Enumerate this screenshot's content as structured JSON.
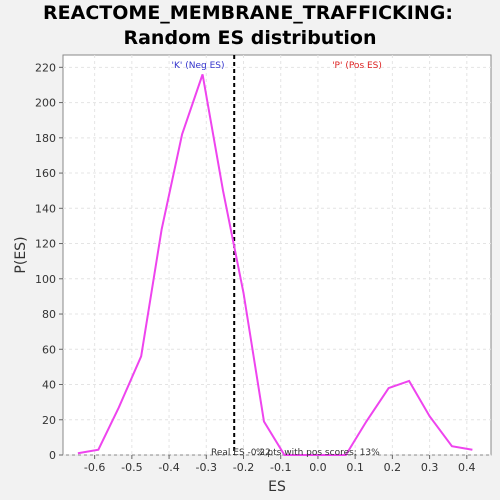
{
  "chart_data": {
    "type": "line",
    "title": "REACTOME_MEMBRANE_TRAFFICKING:",
    "subtitle": "Random ES distribution",
    "xlabel": "ES",
    "ylabel": "P(ES)",
    "xlim": [
      -0.685,
      0.465
    ],
    "ylim": [
      0,
      227
    ],
    "xticks": [
      -0.6,
      -0.5,
      -0.4,
      -0.3,
      -0.2,
      -0.1,
      0.0,
      0.1,
      0.2,
      0.3,
      0.4
    ],
    "xtick_labels": [
      "-0.6",
      "-0.5",
      "-0.4",
      "-0.3",
      "-0.2",
      "-0.1",
      "0.0",
      "0.1",
      "0.2",
      "0.3",
      "0.4"
    ],
    "yticks": [
      0,
      20,
      40,
      60,
      80,
      100,
      120,
      140,
      160,
      180,
      200,
      220
    ],
    "ytick_labels": [
      "0",
      "20",
      "40",
      "60",
      "80",
      "100",
      "120",
      "140",
      "160",
      "180",
      "200",
      "220"
    ],
    "grid": true,
    "series": [
      {
        "color": "#ee44ee",
        "x": [
          -0.645,
          -0.59,
          -0.535,
          -0.475,
          -0.42,
          -0.365,
          -0.31,
          -0.255,
          -0.2,
          -0.145,
          -0.09,
          -0.035,
          0.02,
          0.075,
          0.13,
          0.19,
          0.245,
          0.3,
          0.36,
          0.415
        ],
        "y": [
          1,
          3,
          27,
          56,
          128,
          182,
          216,
          150,
          92,
          19,
          0,
          0,
          0,
          0,
          19,
          38,
          42,
          22,
          5,
          3
        ]
      }
    ],
    "real_es_line": -0.225,
    "annotations": {
      "neg_label": "'K' (Neg ES)",
      "pos_label": "'P' (Pos ES)",
      "real_es": "Real ES -0.22",
      "pos_scores": "% pts with pos scores: 13%"
    },
    "colors": {
      "neg": "#3333cc",
      "pos": "#dd2222",
      "line": "#ee44ee"
    }
  }
}
